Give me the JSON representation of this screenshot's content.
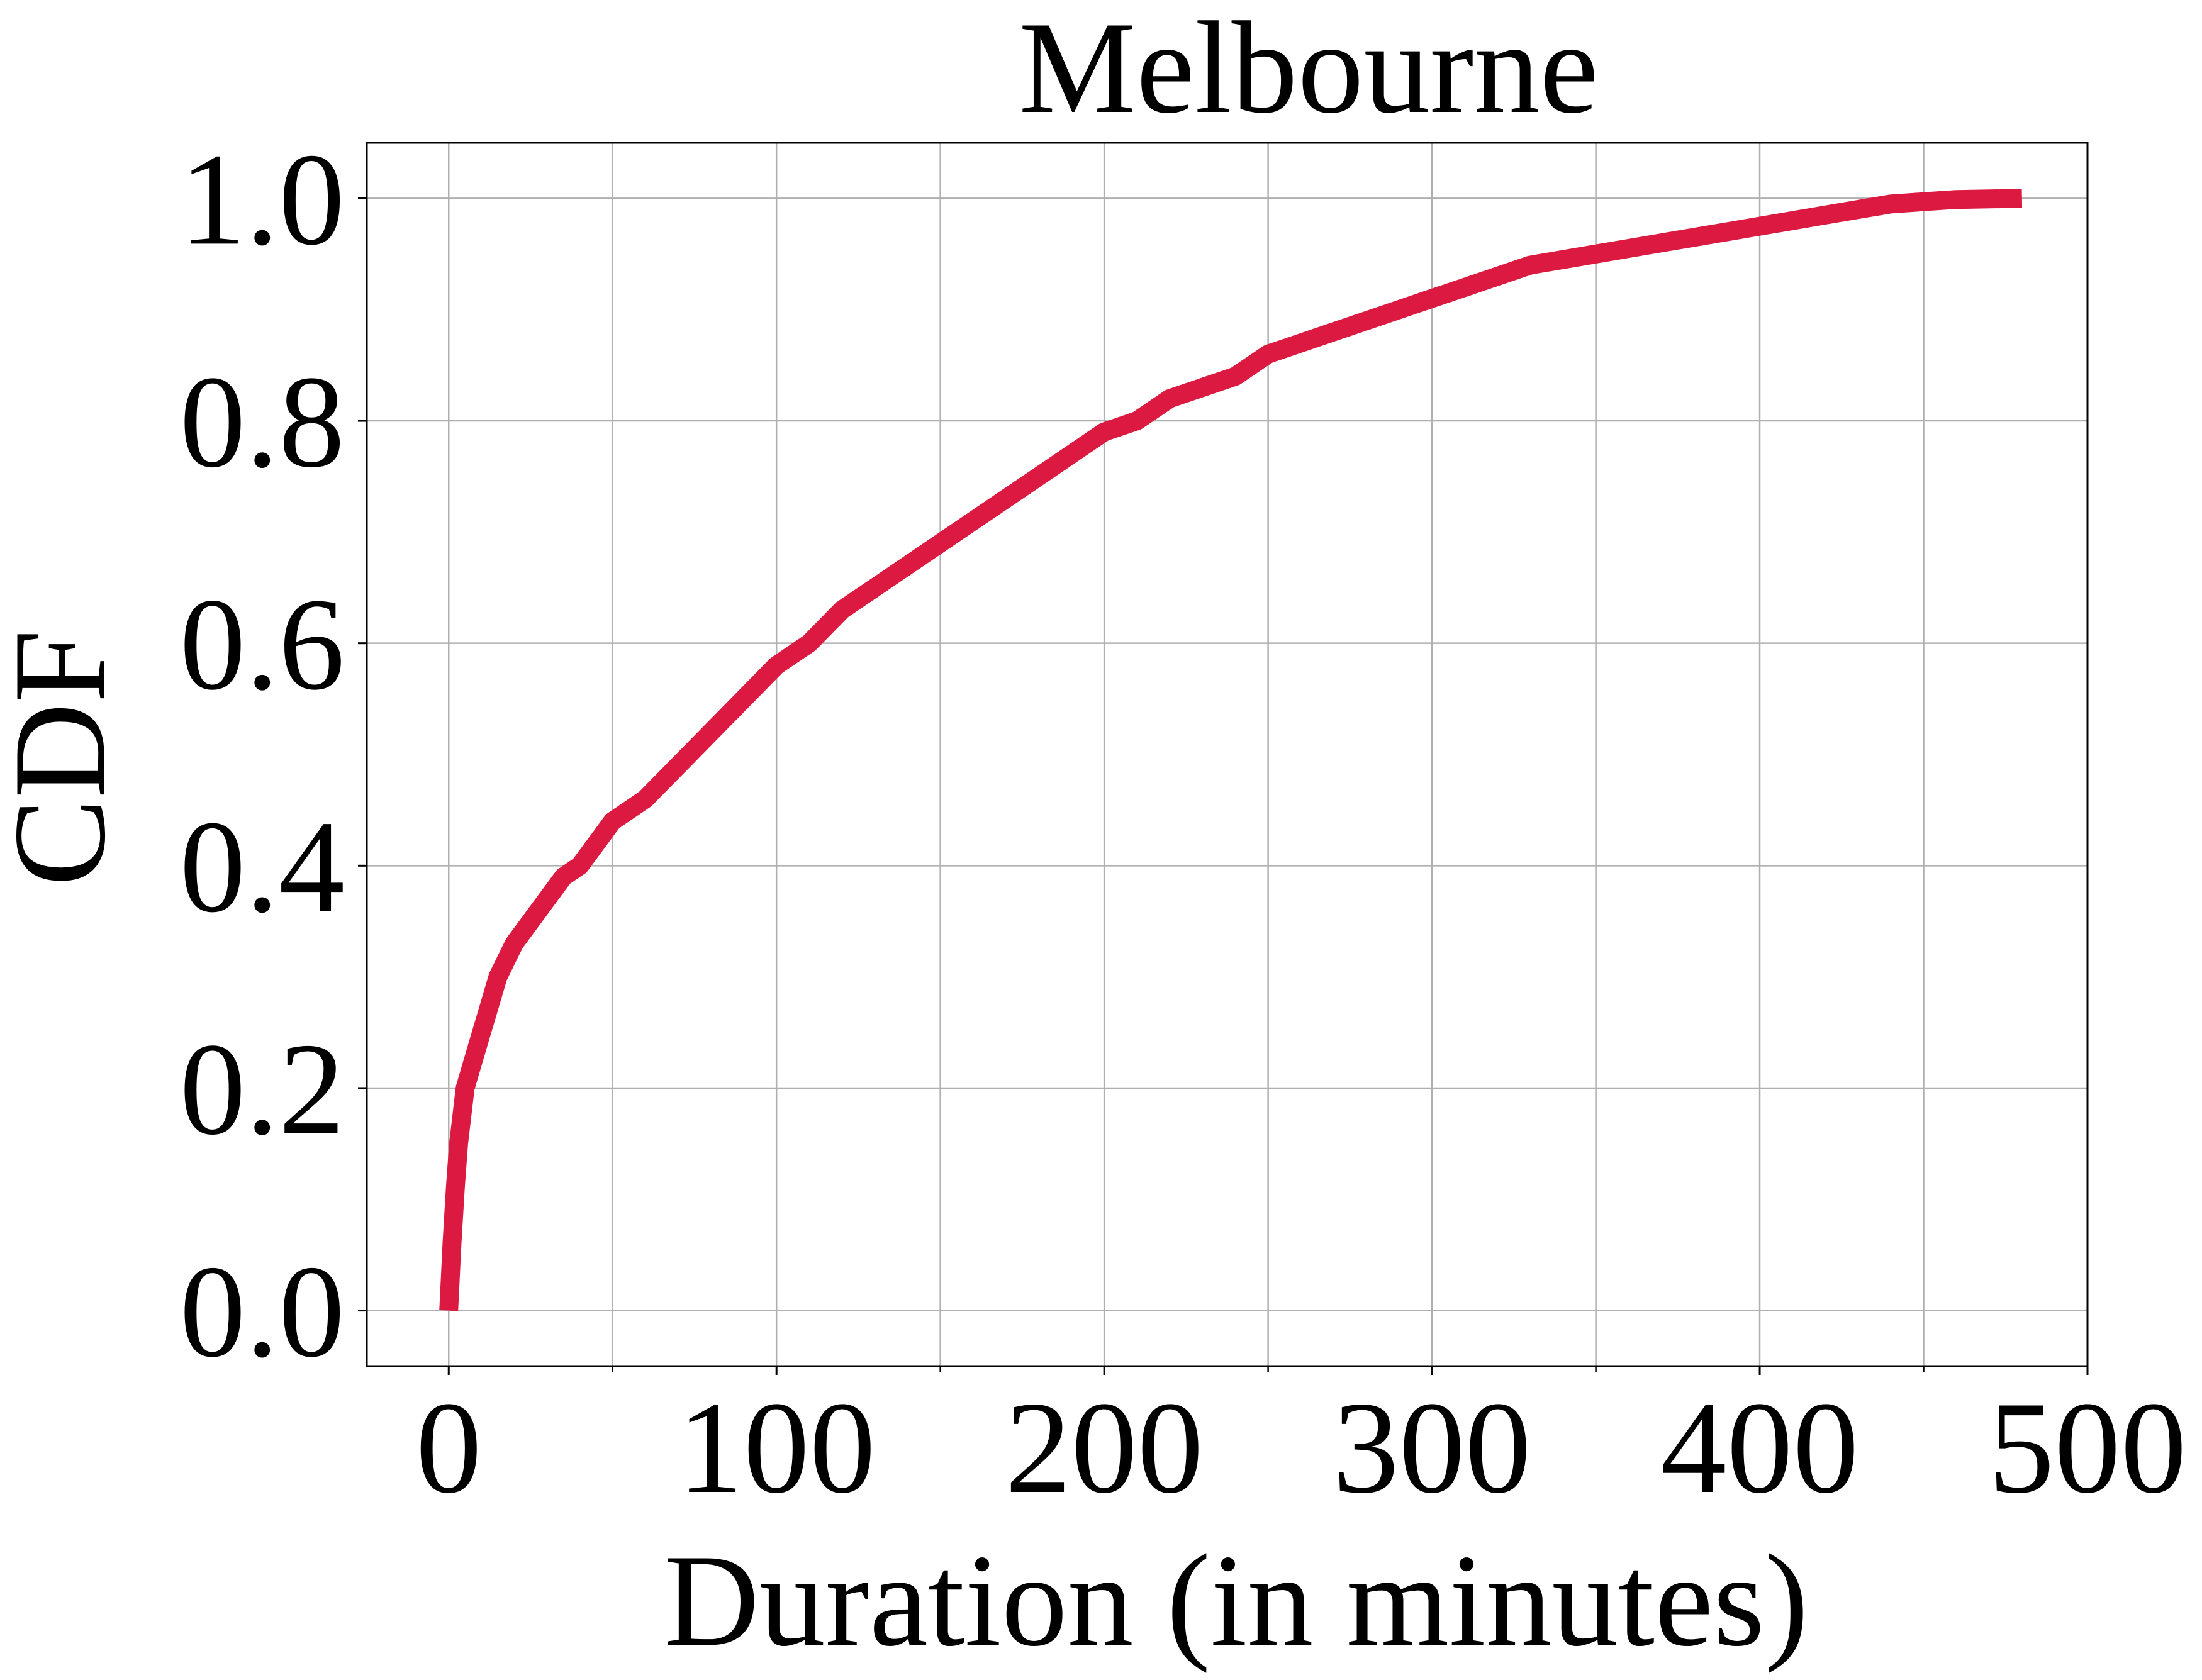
{
  "chart_data": {
    "type": "line",
    "title": "Melbourne",
    "xlabel": "Duration (in minutes)",
    "ylabel": "CDF",
    "xlim": [
      -25,
      500
    ],
    "ylim": [
      -0.05,
      1.05
    ],
    "xticks": [
      0,
      100,
      200,
      300,
      400,
      500
    ],
    "xtick_labels": [
      "0",
      "100",
      "200",
      "300",
      "400",
      "500"
    ],
    "x_minor_ticks": [
      50,
      150,
      250,
      350,
      450
    ],
    "yticks": [
      0.0,
      0.2,
      0.4,
      0.6,
      0.8,
      1.0
    ],
    "ytick_labels": [
      "0.0",
      "0.2",
      "0.4",
      "0.6",
      "0.8",
      "1.0"
    ],
    "grid": true,
    "line_color": "#dc1941",
    "series": [
      {
        "x": [
          0,
          1,
          2,
          3,
          5,
          8,
          10,
          12,
          15,
          20,
          25,
          30,
          35,
          40,
          45,
          50,
          60,
          70,
          80,
          90,
          100,
          110,
          120,
          130,
          140,
          150,
          160,
          170,
          180,
          190,
          200,
          210,
          220,
          230,
          240,
          250,
          260,
          270,
          280,
          290,
          300,
          310,
          320,
          330,
          340,
          350,
          360,
          370,
          380,
          390,
          400,
          410,
          420,
          430,
          440,
          450,
          460,
          480
        ],
        "y": [
          0.0,
          0.06,
          0.11,
          0.15,
          0.2,
          0.23,
          0.25,
          0.27,
          0.3,
          0.33,
          0.35,
          0.37,
          0.39,
          0.4,
          0.42,
          0.44,
          0.46,
          0.49,
          0.52,
          0.55,
          0.58,
          0.6,
          0.63,
          0.65,
          0.67,
          0.69,
          0.71,
          0.73,
          0.75,
          0.77,
          0.79,
          0.8,
          0.82,
          0.83,
          0.84,
          0.86,
          0.87,
          0.88,
          0.89,
          0.9,
          0.91,
          0.92,
          0.93,
          0.94,
          0.945,
          0.95,
          0.955,
          0.96,
          0.965,
          0.97,
          0.975,
          0.98,
          0.985,
          0.99,
          0.995,
          0.997,
          0.999,
          1.0
        ]
      }
    ]
  }
}
